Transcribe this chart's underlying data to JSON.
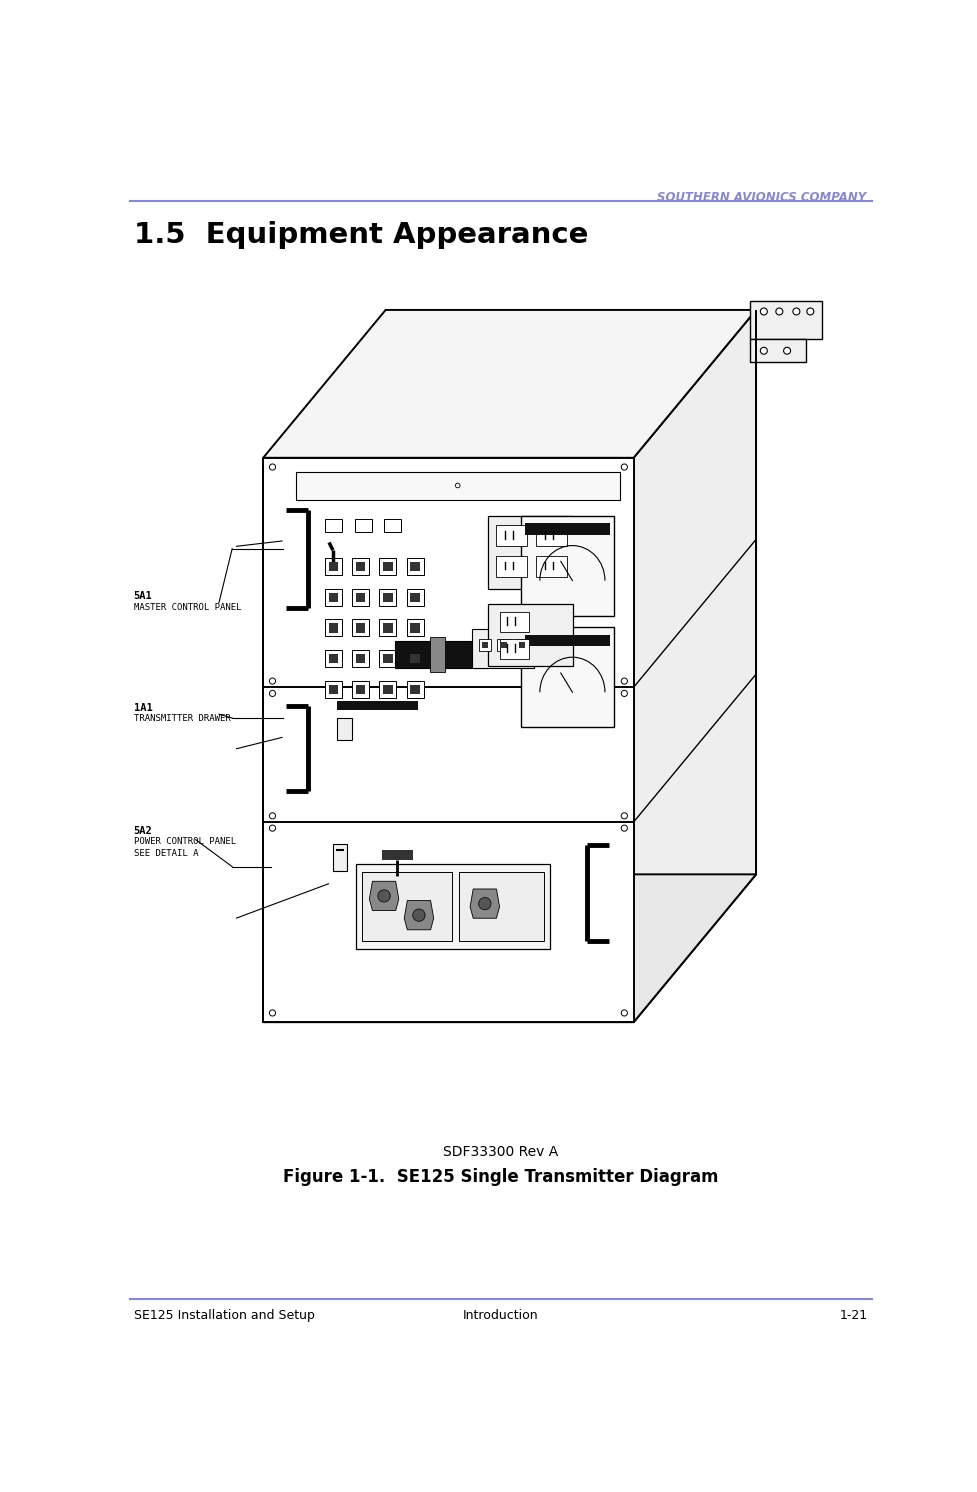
{
  "header_text": "SOUTHERN AVIONICS COMPANY",
  "header_color": "#8888cc",
  "header_line_color": "#8888cc",
  "section_title": "1.5  Equipment Appearance",
  "section_title_fontsize": 22,
  "fig_caption_line1": "SDF33300 Rev A",
  "fig_caption_line2": "Figure 1-1.  SE125 Single Transmitter Diagram",
  "footer_left": "SE125 Installation and Setup",
  "footer_center": "Introduction",
  "footer_right": "1-21",
  "footer_line_color": "#8888cc",
  "label_5A1_title": "5A1",
  "label_5A1_sub": "MASTER CONTROL PANEL",
  "label_1A1_title": "1A1",
  "label_1A1_sub": "TRANSMITTER DRAWER",
  "label_5A2_title": "5A2",
  "label_5A2_sub": "POWER CONTROL PANEL",
  "label_5A2_sub2": "SEE DETAIL A",
  "bg_color": "#ffffff",
  "line_color": "#000000",
  "face_color": "#ffffff",
  "top_color": "#f5f5f5",
  "side_color": "#eeeeee"
}
